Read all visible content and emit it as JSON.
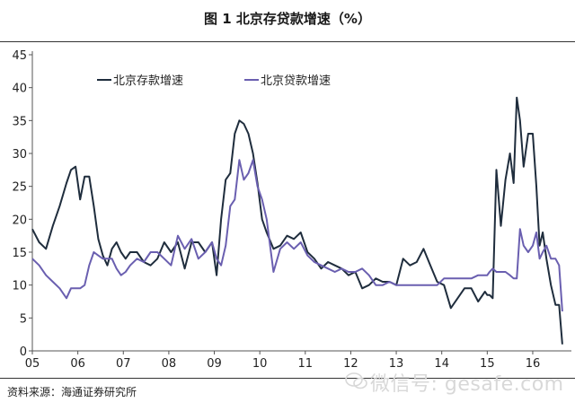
{
  "title": "图 1   北京存贷款增速（%）",
  "source": "资料来源：海通证券研究所",
  "watermark": "微信号: gesafe.com",
  "colors": {
    "deposit": "#1f2d3d",
    "loan": "#6a5fb0",
    "axis": "#555555"
  },
  "chart_data": {
    "type": "line",
    "title": "图 1   北京存贷款增速（%）",
    "xlabel": "",
    "ylabel": "",
    "ylim": [
      0,
      45
    ],
    "yticks": [
      "0",
      "5",
      "10",
      "15",
      "20",
      "25",
      "30",
      "35",
      "40",
      "45"
    ],
    "xlim": [
      2005.0,
      2016.85
    ],
    "xticks": [
      {
        "label": "05",
        "x": 2005
      },
      {
        "label": "06",
        "x": 2006
      },
      {
        "label": "07",
        "x": 2007
      },
      {
        "label": "08",
        "x": 2008
      },
      {
        "label": "09",
        "x": 2009
      },
      {
        "label": "10",
        "x": 2010
      },
      {
        "label": "11",
        "x": 2011
      },
      {
        "label": "12",
        "x": 2012
      },
      {
        "label": "13",
        "x": 2013
      },
      {
        "label": "14",
        "x": 2014
      },
      {
        "label": "15",
        "x": 2015
      },
      {
        "label": "16",
        "x": 2016
      }
    ],
    "legend": "top-left",
    "series": [
      {
        "name": "北京存款增速",
        "x": [
          2005.0,
          2005.15,
          2005.3,
          2005.45,
          2005.6,
          2005.75,
          2005.85,
          2005.95,
          2006.05,
          2006.15,
          2006.25,
          2006.35,
          2006.45,
          2006.55,
          2006.65,
          2006.75,
          2006.85,
          2006.95,
          2007.05,
          2007.15,
          2007.3,
          2007.45,
          2007.6,
          2007.75,
          2007.9,
          2008.05,
          2008.2,
          2008.35,
          2008.5,
          2008.65,
          2008.8,
          2008.95,
          2009.05,
          2009.15,
          2009.25,
          2009.35,
          2009.45,
          2009.55,
          2009.65,
          2009.75,
          2009.85,
          2009.95,
          2010.05,
          2010.15,
          2010.3,
          2010.45,
          2010.6,
          2010.75,
          2010.9,
          2011.05,
          2011.2,
          2011.35,
          2011.5,
          2011.65,
          2011.8,
          2011.95,
          2012.1,
          2012.25,
          2012.4,
          2012.55,
          2012.7,
          2012.85,
          2013.0,
          2013.15,
          2013.3,
          2013.45,
          2013.6,
          2013.75,
          2013.9,
          2014.05,
          2014.2,
          2014.35,
          2014.5,
          2014.65,
          2014.8,
          2014.95,
          2015.0,
          2015.05,
          2015.12,
          2015.2,
          2015.3,
          2015.4,
          2015.5,
          2015.58,
          2015.65,
          2015.72,
          2015.8,
          2015.9,
          2016.0,
          2016.08,
          2016.15,
          2016.22,
          2016.3,
          2016.4,
          2016.5,
          2016.58,
          2016.65
        ],
        "y": [
          18.5,
          16.5,
          15.5,
          19,
          22,
          25.5,
          27.5,
          28,
          23,
          26.5,
          26.5,
          22,
          17,
          14.5,
          13,
          15.5,
          16.5,
          15,
          14,
          15,
          15,
          13.5,
          13,
          14,
          16.5,
          15,
          16.5,
          12.5,
          16.5,
          16.5,
          15,
          16.5,
          11.5,
          20,
          26,
          27,
          33,
          35,
          34.5,
          33,
          30,
          25.5,
          20,
          18,
          15.5,
          16,
          17.5,
          17,
          18,
          15,
          14,
          12.5,
          13.5,
          13,
          12.5,
          11.5,
          12,
          9.5,
          10,
          11,
          10.5,
          10.5,
          10,
          14,
          13,
          13.5,
          15.5,
          13,
          10.5,
          10,
          6.5,
          8,
          9.5,
          9.5,
          7.5,
          9,
          8.5,
          8.5,
          8,
          27.5,
          19,
          26,
          30,
          25.5,
          38.5,
          35,
          28,
          33,
          33,
          25,
          16,
          18,
          14,
          10,
          7,
          7,
          1
        ]
      },
      {
        "name": "北京贷款增速",
        "x": [
          2005.0,
          2005.15,
          2005.3,
          2005.45,
          2005.6,
          2005.75,
          2005.85,
          2005.95,
          2006.05,
          2006.15,
          2006.25,
          2006.35,
          2006.45,
          2006.55,
          2006.65,
          2006.75,
          2006.85,
          2006.95,
          2007.05,
          2007.15,
          2007.3,
          2007.45,
          2007.6,
          2007.75,
          2007.9,
          2008.05,
          2008.2,
          2008.35,
          2008.5,
          2008.65,
          2008.8,
          2008.95,
          2009.05,
          2009.15,
          2009.25,
          2009.35,
          2009.45,
          2009.55,
          2009.65,
          2009.75,
          2009.85,
          2009.95,
          2010.05,
          2010.15,
          2010.3,
          2010.45,
          2010.6,
          2010.75,
          2010.9,
          2011.05,
          2011.2,
          2011.35,
          2011.5,
          2011.65,
          2011.8,
          2011.95,
          2012.1,
          2012.25,
          2012.4,
          2012.55,
          2012.7,
          2012.85,
          2013.0,
          2013.15,
          2013.3,
          2013.45,
          2013.6,
          2013.75,
          2013.9,
          2014.05,
          2014.2,
          2014.35,
          2014.5,
          2014.65,
          2014.8,
          2014.95,
          2015.0,
          2015.05,
          2015.12,
          2015.2,
          2015.3,
          2015.4,
          2015.5,
          2015.58,
          2015.65,
          2015.72,
          2015.8,
          2015.9,
          2016.0,
          2016.08,
          2016.15,
          2016.22,
          2016.3,
          2016.4,
          2016.5,
          2016.58,
          2016.65
        ],
        "y": [
          14,
          13,
          11.5,
          10.5,
          9.5,
          8,
          9.5,
          9.5,
          9.5,
          10,
          13,
          15,
          14.5,
          14,
          14,
          14,
          12.5,
          11.5,
          12,
          13,
          14,
          13.5,
          15,
          15,
          14,
          13,
          17.5,
          15.5,
          17,
          14,
          15,
          16.5,
          14,
          13,
          16,
          22,
          23,
          29,
          26,
          27,
          29,
          25,
          23,
          20,
          12,
          15.5,
          16.5,
          15.5,
          16.5,
          14.5,
          13.5,
          13,
          12.5,
          12,
          12.5,
          12,
          12,
          12.5,
          11.5,
          10,
          10,
          10.5,
          10,
          10,
          10,
          10,
          10,
          10,
          10,
          11,
          11,
          11,
          11,
          11,
          11.5,
          11.5,
          11.5,
          12,
          12.5,
          12,
          12,
          12,
          11.5,
          11,
          11,
          18.5,
          16,
          15,
          16,
          18,
          14,
          15,
          16,
          14,
          14,
          13,
          6
        ]
      }
    ]
  }
}
